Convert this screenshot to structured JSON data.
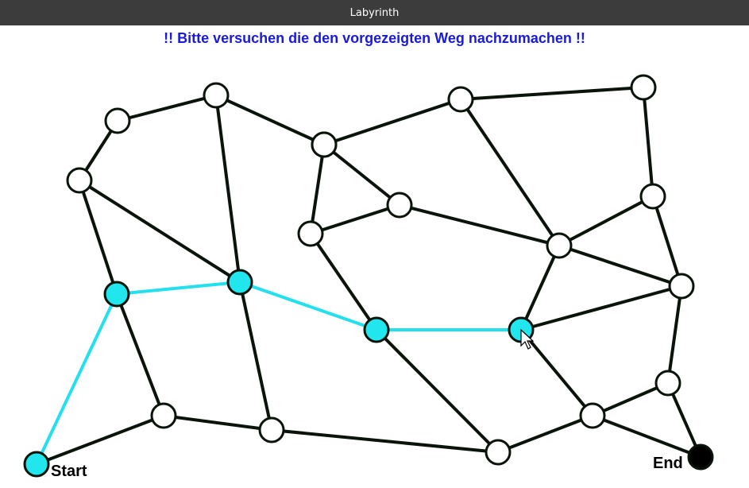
{
  "window": {
    "title": "Labyrinth"
  },
  "instruction": "!! Bitte versuchen die den vorgezeigten Weg nachzumachen !!",
  "labels": {
    "start": "Start",
    "end": "End"
  },
  "colors": {
    "path": "#22e0ee",
    "visited_node": "#22e6ee",
    "edge": "#0a140a",
    "instruction_text": "#1a1adb",
    "titlebar": "#3c3c3c"
  },
  "nodes": [
    {
      "id": "n01",
      "state": "default"
    },
    {
      "id": "n02",
      "state": "default"
    },
    {
      "id": "n03",
      "state": "default"
    },
    {
      "id": "n04",
      "state": "default"
    },
    {
      "id": "n05",
      "state": "visited"
    },
    {
      "id": "n06",
      "state": "visited"
    },
    {
      "id": "n07",
      "state": "default"
    },
    {
      "id": "n08",
      "state": "default"
    },
    {
      "id": "n09",
      "state": "start"
    },
    {
      "id": "n10",
      "state": "default"
    },
    {
      "id": "n11",
      "state": "default"
    },
    {
      "id": "n12",
      "state": "visited"
    },
    {
      "id": "n13",
      "state": "default"
    },
    {
      "id": "n14",
      "state": "default"
    },
    {
      "id": "n15",
      "state": "default"
    },
    {
      "id": "n16",
      "state": "default"
    },
    {
      "id": "n17",
      "state": "visited"
    },
    {
      "id": "n18",
      "state": "default"
    },
    {
      "id": "n19",
      "state": "default"
    },
    {
      "id": "n20",
      "state": "default"
    },
    {
      "id": "n21",
      "state": "default"
    },
    {
      "id": "n22",
      "state": "default"
    },
    {
      "id": "n23",
      "state": "end"
    }
  ],
  "edges": [
    [
      "n01",
      "n02"
    ],
    [
      "n02",
      "n03"
    ],
    [
      "n03",
      "n04"
    ],
    [
      "n04",
      "n05"
    ],
    [
      "n04",
      "n06"
    ],
    [
      "n05",
      "n06"
    ],
    [
      "n05",
      "n07"
    ],
    [
      "n07",
      "n08"
    ],
    [
      "n09",
      "n05"
    ],
    [
      "n09",
      "n07"
    ],
    [
      "n03",
      "n06"
    ],
    [
      "n03",
      "n10"
    ],
    [
      "n06",
      "n08"
    ],
    [
      "n06",
      "n12"
    ],
    [
      "n08",
      "n16"
    ],
    [
      "n10",
      "n11"
    ],
    [
      "n10",
      "n13"
    ],
    [
      "n11",
      "n12"
    ],
    [
      "n11",
      "n13"
    ],
    [
      "n12",
      "n16"
    ],
    [
      "n12",
      "n17"
    ],
    [
      "n10",
      "n14"
    ],
    [
      "n13",
      "n18"
    ],
    [
      "n14",
      "n18"
    ],
    [
      "n14",
      "n15"
    ],
    [
      "n15",
      "n19"
    ],
    [
      "n19",
      "n18"
    ],
    [
      "n19",
      "n20"
    ],
    [
      "n18",
      "n20"
    ],
    [
      "n18",
      "n17"
    ],
    [
      "n20",
      "n17"
    ],
    [
      "n20",
      "n21"
    ],
    [
      "n17",
      "n22"
    ],
    [
      "n21",
      "n22"
    ],
    [
      "n22",
      "n16"
    ],
    [
      "n21",
      "n23"
    ],
    [
      "n22",
      "n23"
    ]
  ],
  "path_edges": [
    [
      "n09",
      "n05"
    ],
    [
      "n05",
      "n06"
    ],
    [
      "n06",
      "n12"
    ],
    [
      "n12",
      "n17"
    ]
  ]
}
